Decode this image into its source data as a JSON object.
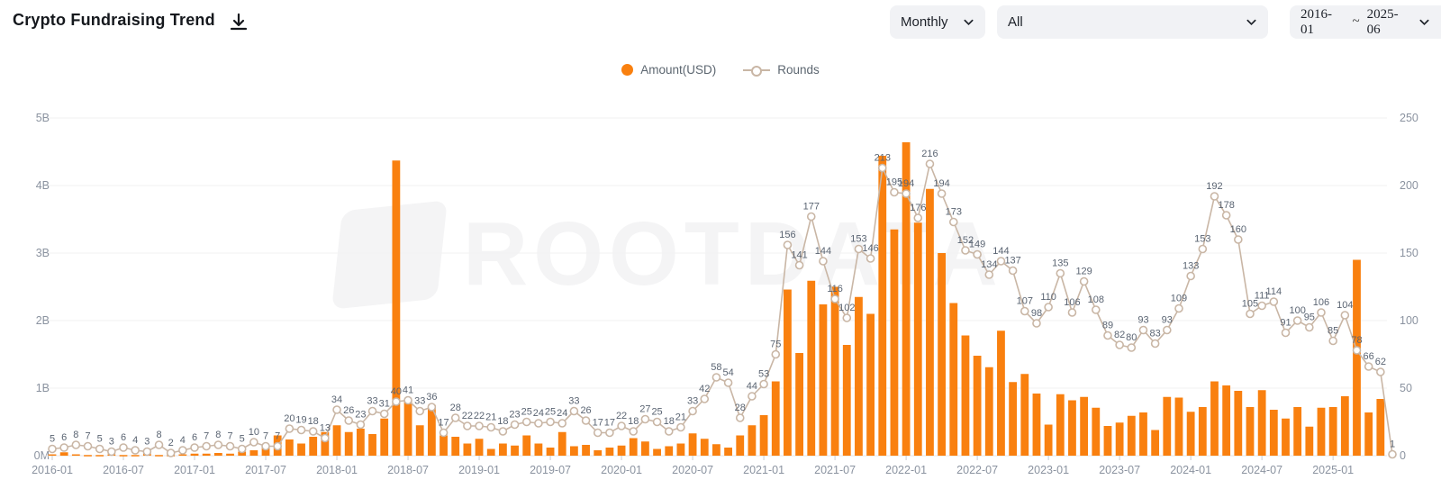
{
  "header": {
    "title": "Crypto Fundraising Trend",
    "download_icon": "download-icon"
  },
  "controls": {
    "period_selected": "Monthly",
    "category_selected": "All",
    "date_from": "2016-01",
    "date_separator": "~",
    "date_to": "2025-06"
  },
  "legend": {
    "amount_label": "Amount(USD)",
    "rounds_label": "Rounds"
  },
  "watermark": "ROOTDATA",
  "colors": {
    "bar": "#F9800F",
    "line": "#C9B6A5",
    "point_fill": "#FFFFFF",
    "axis_text": "#8B93A0",
    "value_label": "#5A6472",
    "grid": "#F2F2F2",
    "pill_bg": "#F1F2F5"
  },
  "chart_data": {
    "type": "bar+line combo",
    "title": "Crypto Fundraising Trend",
    "start_month": "2016-01",
    "end_month": "2025-06",
    "months_count": 114,
    "legend_position": "top-center",
    "grid": "horizontal only",
    "left_axis": {
      "label": "Amount(USD)",
      "ticks": [
        "0M",
        "1B",
        "2B",
        "3B",
        "4B",
        "5B"
      ],
      "range_billions": [
        0,
        5
      ]
    },
    "right_axis": {
      "label": "Rounds",
      "ticks": [
        "0",
        "50",
        "100",
        "150",
        "200",
        "250"
      ],
      "range": [
        0,
        250
      ]
    },
    "x_tick_labels": [
      "2016-01",
      "2016-07",
      "2017-01",
      "2017-07",
      "2018-01",
      "2018-07",
      "2019-01",
      "2019-07",
      "2020-01",
      "2020-07",
      "2021-01",
      "2021-07",
      "2022-01",
      "2022-07",
      "2023-01",
      "2023-07",
      "2024-01",
      "2024-07",
      "2025-01"
    ],
    "series": [
      {
        "name": "Amount(USD)",
        "type": "bar",
        "unit": "billion USD",
        "values": [
          0.02,
          0.05,
          0.02,
          0.01,
          0.01,
          0.02,
          0.01,
          0.01,
          0.03,
          0.01,
          0.01,
          0.02,
          0.03,
          0.03,
          0.04,
          0.03,
          0.06,
          0.08,
          0.12,
          0.3,
          0.24,
          0.18,
          0.28,
          0.35,
          0.45,
          0.35,
          0.4,
          0.32,
          0.55,
          4.37,
          0.8,
          0.45,
          0.75,
          0.3,
          0.28,
          0.18,
          0.25,
          0.1,
          0.18,
          0.15,
          0.3,
          0.18,
          0.12,
          0.35,
          0.14,
          0.16,
          0.08,
          0.12,
          0.15,
          0.26,
          0.21,
          0.1,
          0.14,
          0.18,
          0.33,
          0.25,
          0.17,
          0.12,
          0.3,
          0.45,
          0.6,
          1.1,
          2.46,
          1.52,
          2.59,
          2.24,
          2.5,
          1.64,
          2.35,
          2.1,
          4.44,
          3.35,
          4.64,
          3.45,
          3.95,
          3.0,
          2.26,
          1.78,
          1.48,
          1.31,
          1.85,
          1.09,
          1.21,
          0.92,
          0.46,
          0.91,
          0.82,
          0.87,
          0.71,
          0.44,
          0.49,
          0.59,
          0.64,
          0.38,
          0.87,
          0.86,
          0.65,
          0.72,
          1.1,
          1.04,
          0.96,
          0.72,
          0.97,
          0.68,
          0.55,
          0.72,
          0.43,
          0.71,
          0.72,
          0.88,
          2.9,
          0.64,
          0.84,
          0.04
        ]
      },
      {
        "name": "Rounds",
        "type": "line",
        "values": [
          5,
          6,
          8,
          7,
          5,
          3,
          6,
          4,
          3,
          8,
          2,
          4,
          6,
          7,
          8,
          7,
          5,
          10,
          7,
          7,
          20,
          19,
          18,
          13,
          34,
          26,
          23,
          33,
          31,
          40,
          41,
          33,
          36,
          17,
          28,
          22,
          22,
          21,
          18,
          23,
          25,
          24,
          25,
          24,
          33,
          26,
          17,
          17,
          22,
          18,
          27,
          25,
          18,
          21,
          33,
          42,
          58,
          54,
          28,
          44,
          53,
          75,
          156,
          141,
          177,
          144,
          116,
          102,
          153,
          146,
          213,
          195,
          194,
          176,
          216,
          194,
          173,
          152,
          149,
          134,
          144,
          137,
          107,
          98,
          110,
          135,
          106,
          129,
          108,
          89,
          82,
          80,
          93,
          83,
          93,
          109,
          133,
          153,
          192,
          178,
          160,
          105,
          111,
          114,
          91,
          100,
          95,
          106,
          85,
          104,
          78,
          66,
          62,
          1
        ]
      }
    ]
  }
}
